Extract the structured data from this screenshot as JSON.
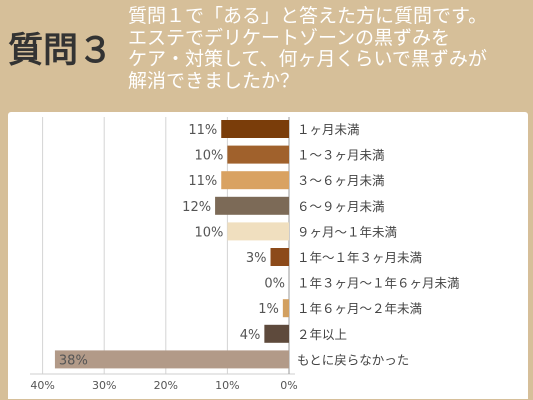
{
  "header": {
    "question_number": "質問３",
    "question_lines": [
      "質問１で「ある」と答えた方に質問です。",
      "エステでデリケートゾーンの黒ずみを",
      "ケア・対策して、何ヶ月くらいで黒ずみが",
      "解消できましたか？"
    ]
  },
  "chart_data": {
    "type": "bar",
    "orientation": "horizontal-reversed",
    "categories": [
      "１ヶ月未満",
      "１〜３ヶ月未満",
      "３〜６ヶ月未満",
      "６〜９ヶ月未満",
      "９ヶ月〜１年未満",
      "１年〜１年３ヶ月未満",
      "１年３ヶ月〜１年６ヶ月未満",
      "１年６ヶ月〜２年未満",
      "２年以上",
      "もとに戻らなかった"
    ],
    "values": [
      11,
      10,
      11,
      12,
      10,
      3,
      0,
      1,
      4,
      38
    ],
    "value_labels": [
      "11%",
      "10%",
      "11%",
      "12%",
      "10%",
      "3%",
      "0%",
      "1%",
      "4%",
      "38%"
    ],
    "colors": [
      "#7a3d0a",
      "#a0612c",
      "#d9a262",
      "#7c6a57",
      "#f0dfbf",
      "#8c4a1a",
      "#c9a36a",
      "#d2a060",
      "#5e4a3c",
      "#b29a88"
    ],
    "xlim": [
      0,
      40
    ],
    "x_ticks": [
      40,
      30,
      20,
      10,
      0
    ],
    "x_tick_labels": [
      "40%",
      "30%",
      "20%",
      "10%",
      "0%"
    ],
    "grid": true
  }
}
